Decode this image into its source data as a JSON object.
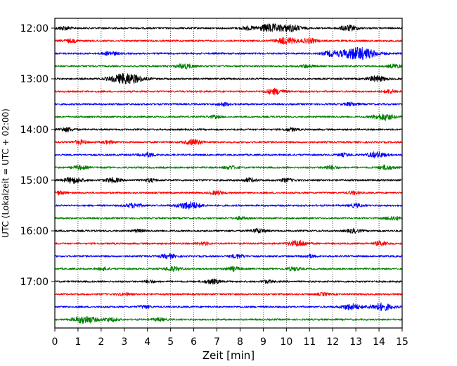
{
  "chart_data": {
    "type": "line",
    "title": "",
    "xlabel": "Zeit  [min]",
    "ylabel": "UTC (Lokalzeit = UTC + 02:00)",
    "xlim": [
      0,
      15
    ],
    "x_ticks": [
      0,
      1,
      2,
      3,
      4,
      5,
      6,
      7,
      8,
      9,
      10,
      11,
      12,
      13,
      14,
      15
    ],
    "x_tick_labels": [
      "0",
      "1",
      "2",
      "3",
      "4",
      "5",
      "6",
      "7",
      "8",
      "9",
      "10",
      "11",
      "12",
      "13",
      "14",
      "15"
    ],
    "y_tick_labels": [
      "12:00",
      "13:00",
      "14:00",
      "15:00",
      "16:00",
      "17:00"
    ],
    "y_tick_rows": [
      0,
      4,
      8,
      12,
      16,
      20
    ],
    "grid_x": true,
    "trace_colors": [
      "#000000",
      "#ff0000",
      "#0000ff",
      "#008000"
    ],
    "trace_row_count": 24,
    "traces": [
      {
        "row": 0,
        "start": "12:00",
        "color": "#000000",
        "events": [
          [
            0.4,
            1.0
          ],
          [
            8.3,
            0.9
          ],
          [
            9.3,
            2.2
          ],
          [
            10.2,
            1.8
          ],
          [
            12.7,
            1.5
          ]
        ]
      },
      {
        "row": 1,
        "start": "12:15",
        "color": "#ff0000",
        "events": [
          [
            0.7,
            0.9
          ],
          [
            10.0,
            1.8
          ],
          [
            11.0,
            1.2
          ]
        ]
      },
      {
        "row": 2,
        "start": "12:30",
        "color": "#0000ff",
        "events": [
          [
            2.4,
            1.0
          ],
          [
            11.9,
            1.2
          ],
          [
            13.1,
            3.5
          ]
        ]
      },
      {
        "row": 3,
        "start": "12:45",
        "color": "#008000",
        "events": [
          [
            5.6,
            1.3
          ],
          [
            10.9,
            0.8
          ],
          [
            14.7,
            1.0
          ]
        ]
      },
      {
        "row": 4,
        "start": "13:00",
        "color": "#000000",
        "events": [
          [
            3.1,
            3.0
          ],
          [
            13.9,
            1.5
          ]
        ]
      },
      {
        "row": 5,
        "start": "13:15",
        "color": "#ff0000",
        "events": [
          [
            9.5,
            1.5
          ],
          [
            14.5,
            1.0
          ]
        ]
      },
      {
        "row": 6,
        "start": "13:30",
        "color": "#0000ff",
        "events": [
          [
            7.3,
            0.9
          ],
          [
            12.8,
            0.9
          ]
        ]
      },
      {
        "row": 7,
        "start": "13:45",
        "color": "#008000",
        "events": [
          [
            14.2,
            1.8
          ],
          [
            6.9,
            0.7
          ]
        ]
      },
      {
        "row": 8,
        "start": "14:00",
        "color": "#000000",
        "events": [
          [
            0.5,
            1.1
          ],
          [
            10.2,
            0.8
          ]
        ]
      },
      {
        "row": 9,
        "start": "14:15",
        "color": "#ff0000",
        "events": [
          [
            1.1,
            1.0
          ],
          [
            6.0,
            1.4
          ],
          [
            2.3,
            0.8
          ]
        ]
      },
      {
        "row": 10,
        "start": "14:30",
        "color": "#0000ff",
        "events": [
          [
            4.0,
            1.1
          ],
          [
            13.9,
            1.5
          ],
          [
            12.5,
            0.8
          ]
        ]
      },
      {
        "row": 11,
        "start": "14:45",
        "color": "#008000",
        "events": [
          [
            1.1,
            1.0
          ],
          [
            7.6,
            0.9
          ],
          [
            11.9,
            1.0
          ],
          [
            14.3,
            1.2
          ]
        ]
      },
      {
        "row": 12,
        "start": "15:00",
        "color": "#000000",
        "events": [
          [
            0.8,
            1.6
          ],
          [
            2.5,
            1.2
          ],
          [
            8.4,
            1.0
          ],
          [
            10.0,
            0.9
          ],
          [
            4.1,
            0.9
          ]
        ]
      },
      {
        "row": 13,
        "start": "15:15",
        "color": "#ff0000",
        "events": [
          [
            0.2,
            0.9
          ],
          [
            7.0,
            1.0
          ],
          [
            12.9,
            0.8
          ]
        ]
      },
      {
        "row": 14,
        "start": "15:30",
        "color": "#0000ff",
        "events": [
          [
            3.4,
            1.2
          ],
          [
            5.8,
            2.0
          ],
          [
            13.0,
            0.9
          ]
        ]
      },
      {
        "row": 15,
        "start": "15:45",
        "color": "#008000",
        "events": [
          [
            14.6,
            1.1
          ],
          [
            8.0,
            0.7
          ]
        ]
      },
      {
        "row": 16,
        "start": "16:00",
        "color": "#000000",
        "events": [
          [
            8.8,
            1.1
          ],
          [
            12.9,
            1.0
          ],
          [
            3.6,
            0.7
          ]
        ]
      },
      {
        "row": 17,
        "start": "16:15",
        "color": "#ff0000",
        "events": [
          [
            10.5,
            1.6
          ],
          [
            14.1,
            1.1
          ],
          [
            6.4,
            0.8
          ]
        ]
      },
      {
        "row": 18,
        "start": "16:30",
        "color": "#0000ff",
        "events": [
          [
            4.9,
            1.1
          ],
          [
            7.9,
            1.0
          ],
          [
            11.0,
            0.8
          ]
        ]
      },
      {
        "row": 19,
        "start": "16:45",
        "color": "#008000",
        "events": [
          [
            5.1,
            1.2
          ],
          [
            7.7,
            1.1
          ],
          [
            10.3,
            1.0
          ],
          [
            2.1,
            0.7
          ]
        ]
      },
      {
        "row": 20,
        "start": "17:00",
        "color": "#000000",
        "events": [
          [
            6.8,
            1.2
          ],
          [
            4.1,
            0.7
          ],
          [
            9.2,
            0.7
          ]
        ]
      },
      {
        "row": 21,
        "start": "17:15",
        "color": "#ff0000",
        "events": [
          [
            3.0,
            0.7
          ],
          [
            11.6,
            0.7
          ]
        ]
      },
      {
        "row": 22,
        "start": "17:30",
        "color": "#0000ff",
        "events": [
          [
            12.8,
            1.6
          ],
          [
            14.1,
            2.0
          ],
          [
            3.9,
            0.8
          ]
        ]
      },
      {
        "row": 23,
        "start": "17:45",
        "color": "#008000",
        "events": [
          [
            1.3,
            2.0
          ],
          [
            2.4,
            1.0
          ],
          [
            4.5,
            0.8
          ]
        ]
      }
    ]
  }
}
